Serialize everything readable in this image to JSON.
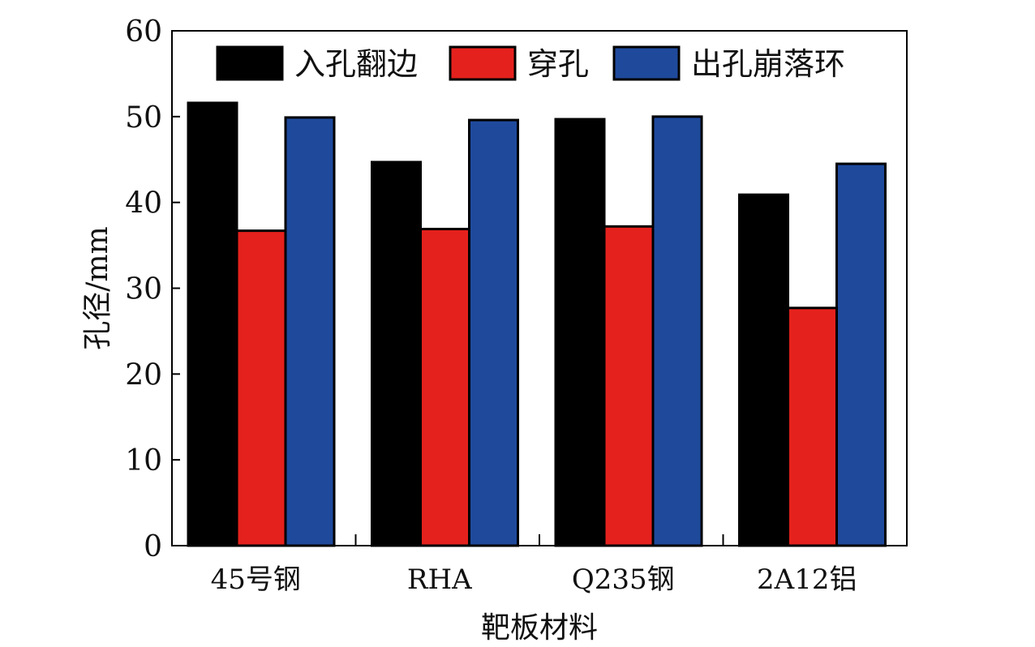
{
  "chart_data": {
    "type": "bar",
    "categories": [
      "45号钢",
      "RHA",
      "Q235钢",
      "2A12铝"
    ],
    "series": [
      {
        "name": "入孔翻边",
        "color": "#000000",
        "values": [
          51.6,
          44.7,
          49.7,
          40.9
        ]
      },
      {
        "name": "穿孔",
        "color": "#e5211d",
        "values": [
          36.7,
          36.9,
          37.2,
          27.7
        ]
      },
      {
        "name": "出孔崩落环",
        "color": "#1f4a9c",
        "values": [
          49.9,
          49.6,
          50.0,
          44.5
        ]
      }
    ],
    "xlabel": "靶板材料",
    "ylabel": "孔径/mm",
    "ylim": [
      0,
      60
    ],
    "yticks": [
      0,
      10,
      20,
      30,
      40,
      50,
      60
    ],
    "grid": false,
    "legend": "top"
  }
}
